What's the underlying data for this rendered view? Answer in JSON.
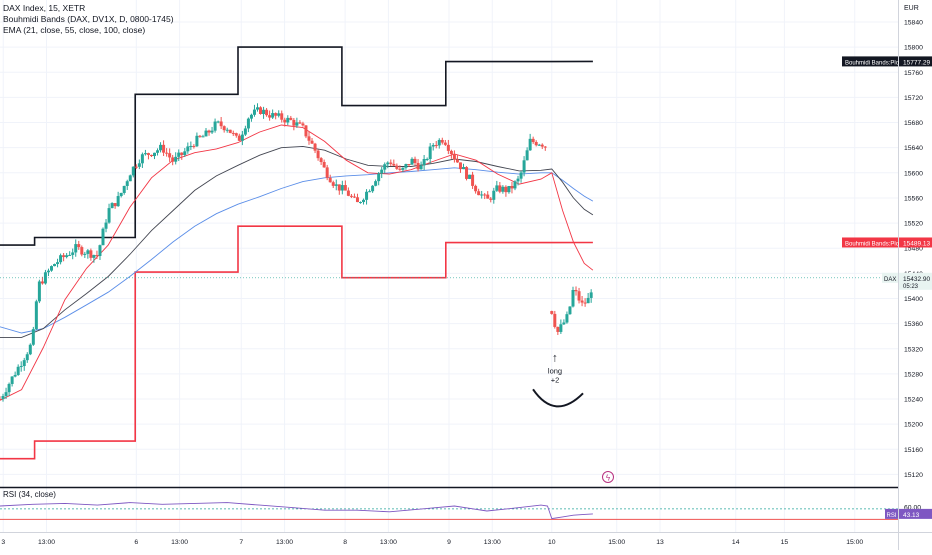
{
  "legend": {
    "symbol": "DAX Index, 15, XETR",
    "indicator1": "Bouhmidi Bands (DAX, DV1X, D, 0800-1745)",
    "indicator2": "EMA (21, close, 55, close, 100, close)"
  },
  "currency": "EUR",
  "rsi_legend": "RSI (34, close)",
  "price_tags": [
    {
      "label": "Bouhmidi Bands:Plot",
      "value": "15777.29",
      "bg": "#131722"
    },
    {
      "label": "Bouhmidi Bands:Plot",
      "value": "15489.13",
      "bg": "#f23645"
    },
    {
      "label": "DAX",
      "value": "15432.90",
      "sub": "05:23",
      "bg": "#e8f4f1"
    }
  ],
  "rsi_tag": {
    "label": "RSI",
    "value": "43.13",
    "bg": "#7e57c2"
  },
  "annotation": {
    "arrow": "↑",
    "line1": "long",
    "line2": "+2"
  },
  "colors": {
    "up": "#26a69a",
    "down": "#ef5350",
    "upper_band": "#131722",
    "lower_band": "#f23645",
    "ema21": "#f23645",
    "ema55": "#434651",
    "ema100": "#5b8ee8",
    "rsi": "#7e57c2",
    "rsi_band": "#26a69a"
  },
  "chart_data": {
    "type": "candlestick",
    "y_axis": {
      "ticks": [
        15120,
        15160,
        15200,
        15240,
        15280,
        15320,
        15360,
        15400,
        15440,
        15480,
        15520,
        15560,
        15600,
        15640,
        15680,
        15720,
        15760,
        15800,
        15840
      ],
      "range": [
        15100,
        15875
      ]
    },
    "x_axis": {
      "ticks": [
        {
          "label": "3",
          "x": 0.3
        },
        {
          "label": "13:00",
          "x": 4.3
        },
        {
          "label": "6",
          "x": 12.6
        },
        {
          "label": "13:00",
          "x": 16.6
        },
        {
          "label": "7",
          "x": 22.3
        },
        {
          "label": "13:00",
          "x": 26.3
        },
        {
          "label": "8",
          "x": 31.9
        },
        {
          "label": "13:00",
          "x": 35.9
        },
        {
          "label": "9",
          "x": 41.5
        },
        {
          "label": "13:00",
          "x": 45.5
        },
        {
          "label": "10",
          "x": 51.0
        },
        {
          "label": "15:00",
          "x": 57.0
        },
        {
          "label": "13",
          "x": 61.0
        },
        {
          "label": "14",
          "x": 68.0
        },
        {
          "label": "15",
          "x": 72.5
        },
        {
          "label": "15:00",
          "x": 79.0
        }
      ],
      "range": [
        0,
        83
      ]
    },
    "bands_upper": [
      [
        0,
        15485
      ],
      [
        3.2,
        15485
      ],
      [
        3.2,
        15497
      ],
      [
        12.5,
        15497
      ],
      [
        12.5,
        15725
      ],
      [
        22.0,
        15725
      ],
      [
        22.0,
        15800
      ],
      [
        31.6,
        15800
      ],
      [
        31.6,
        15707
      ],
      [
        41.2,
        15707
      ],
      [
        41.2,
        15777
      ],
      [
        51.0,
        15777
      ],
      [
        54.8,
        15777.29
      ]
    ],
    "bands_lower": [
      [
        0,
        15145
      ],
      [
        3.2,
        15145
      ],
      [
        3.2,
        15173
      ],
      [
        12.5,
        15173
      ],
      [
        12.5,
        15442
      ],
      [
        22.0,
        15442
      ],
      [
        22.0,
        15515
      ],
      [
        31.6,
        15515
      ],
      [
        31.6,
        15433
      ],
      [
        41.2,
        15433
      ],
      [
        41.2,
        15489
      ],
      [
        51.0,
        15489
      ],
      [
        54.8,
        15489.13
      ]
    ],
    "ema21": [
      [
        0,
        15238
      ],
      [
        2,
        15255
      ],
      [
        4,
        15322
      ],
      [
        6,
        15398
      ],
      [
        8,
        15448
      ],
      [
        10,
        15485
      ],
      [
        12,
        15545
      ],
      [
        14,
        15592
      ],
      [
        16,
        15620
      ],
      [
        18,
        15632
      ],
      [
        20,
        15638
      ],
      [
        22,
        15648
      ],
      [
        24,
        15665
      ],
      [
        26,
        15676
      ],
      [
        28,
        15672
      ],
      [
        30,
        15650
      ],
      [
        32,
        15620
      ],
      [
        34,
        15600
      ],
      [
        36,
        15598
      ],
      [
        38,
        15605
      ],
      [
        40,
        15618
      ],
      [
        42,
        15630
      ],
      [
        44,
        15620
      ],
      [
        46,
        15598
      ],
      [
        48,
        15582
      ],
      [
        50,
        15590
      ],
      [
        51,
        15600
      ],
      [
        52,
        15540
      ],
      [
        53,
        15490
      ],
      [
        54,
        15456
      ],
      [
        54.8,
        15445
      ]
    ],
    "ema55": [
      [
        0,
        15338
      ],
      [
        2,
        15338
      ],
      [
        4,
        15352
      ],
      [
        6,
        15382
      ],
      [
        8,
        15408
      ],
      [
        10,
        15435
      ],
      [
        12,
        15470
      ],
      [
        14,
        15508
      ],
      [
        16,
        15540
      ],
      [
        18,
        15572
      ],
      [
        20,
        15595
      ],
      [
        22,
        15612
      ],
      [
        24,
        15628
      ],
      [
        26,
        15640
      ],
      [
        28,
        15642
      ],
      [
        30,
        15636
      ],
      [
        32,
        15622
      ],
      [
        34,
        15612
      ],
      [
        36,
        15610
      ],
      [
        38,
        15610
      ],
      [
        40,
        15615
      ],
      [
        42,
        15622
      ],
      [
        44,
        15618
      ],
      [
        46,
        15610
      ],
      [
        48,
        15603
      ],
      [
        50,
        15604
      ],
      [
        51,
        15606
      ],
      [
        52,
        15585
      ],
      [
        53,
        15560
      ],
      [
        54,
        15542
      ],
      [
        54.8,
        15533
      ]
    ],
    "ema100": [
      [
        0,
        15355
      ],
      [
        2,
        15345
      ],
      [
        4,
        15352
      ],
      [
        6,
        15370
      ],
      [
        8,
        15390
      ],
      [
        10,
        15410
      ],
      [
        12,
        15435
      ],
      [
        14,
        15462
      ],
      [
        16,
        15490
      ],
      [
        18,
        15515
      ],
      [
        20,
        15535
      ],
      [
        22,
        15550
      ],
      [
        24,
        15562
      ],
      [
        26,
        15575
      ],
      [
        28,
        15586
      ],
      [
        30,
        15592
      ],
      [
        32,
        15595
      ],
      [
        34,
        15597
      ],
      [
        36,
        15600
      ],
      [
        38,
        15602
      ],
      [
        40,
        15605
      ],
      [
        42,
        15608
      ],
      [
        44,
        15605
      ],
      [
        46,
        15601
      ],
      [
        48,
        15598
      ],
      [
        50,
        15600
      ],
      [
        51,
        15600
      ],
      [
        52,
        15588
      ],
      [
        53,
        15575
      ],
      [
        54,
        15563
      ],
      [
        54.8,
        15555
      ]
    ],
    "candle_path": [
      [
        0,
        15240
      ],
      [
        1,
        15270
      ],
      [
        2,
        15300
      ],
      [
        3,
        15330
      ],
      [
        3.5,
        15420
      ],
      [
        5,
        15455
      ],
      [
        7,
        15480
      ],
      [
        9,
        15468
      ],
      [
        10,
        15540
      ],
      [
        11,
        15560
      ],
      [
        12,
        15600
      ],
      [
        13,
        15625
      ],
      [
        15,
        15640
      ],
      [
        16,
        15618
      ],
      [
        17,
        15632
      ],
      [
        18,
        15650
      ],
      [
        19,
        15660
      ],
      [
        20,
        15678
      ],
      [
        21,
        15672
      ],
      [
        22,
        15650
      ],
      [
        23,
        15690
      ],
      [
        24,
        15700
      ],
      [
        25,
        15692
      ],
      [
        27,
        15682
      ],
      [
        28,
        15670
      ],
      [
        29,
        15640
      ],
      [
        30,
        15605
      ],
      [
        31,
        15580
      ],
      [
        32,
        15570
      ],
      [
        33,
        15550
      ],
      [
        34,
        15572
      ],
      [
        35,
        15600
      ],
      [
        36,
        15620
      ],
      [
        37,
        15600
      ],
      [
        38,
        15620
      ],
      [
        39,
        15608
      ],
      [
        40,
        15645
      ],
      [
        41,
        15655
      ],
      [
        42,
        15625
      ],
      [
        43,
        15600
      ],
      [
        44,
        15575
      ],
      [
        45,
        15555
      ],
      [
        46,
        15575
      ],
      [
        47,
        15572
      ],
      [
        48,
        15590
      ],
      [
        49,
        15650
      ],
      [
        50,
        15648
      ],
      [
        50.6,
        15640
      ]
    ],
    "candle_path2": [
      [
        51,
        15380
      ],
      [
        51.5,
        15345
      ],
      [
        52.5,
        15372
      ],
      [
        53,
        15415
      ],
      [
        53.8,
        15390
      ],
      [
        54.5,
        15400
      ],
      [
        54.8,
        15432.9
      ]
    ],
    "rsi": {
      "ticks": [
        60,
        45
      ],
      "range": [
        0,
        100
      ],
      "upper": 55,
      "lower": 30,
      "values": [
        [
          0,
          62
        ],
        [
          3,
          66
        ],
        [
          6,
          68
        ],
        [
          9,
          64
        ],
        [
          12,
          70
        ],
        [
          15,
          66
        ],
        [
          18,
          68
        ],
        [
          21,
          70
        ],
        [
          24,
          64
        ],
        [
          27,
          58
        ],
        [
          30,
          52
        ],
        [
          33,
          52
        ],
        [
          36,
          48
        ],
        [
          39,
          55
        ],
        [
          42,
          62
        ],
        [
          45,
          50
        ],
        [
          48,
          58
        ],
        [
          50,
          64
        ],
        [
          50.6,
          62
        ],
        [
          51,
          32
        ],
        [
          52,
          36
        ],
        [
          53,
          40
        ],
        [
          54,
          42
        ],
        [
          54.8,
          43.13
        ]
      ]
    }
  }
}
